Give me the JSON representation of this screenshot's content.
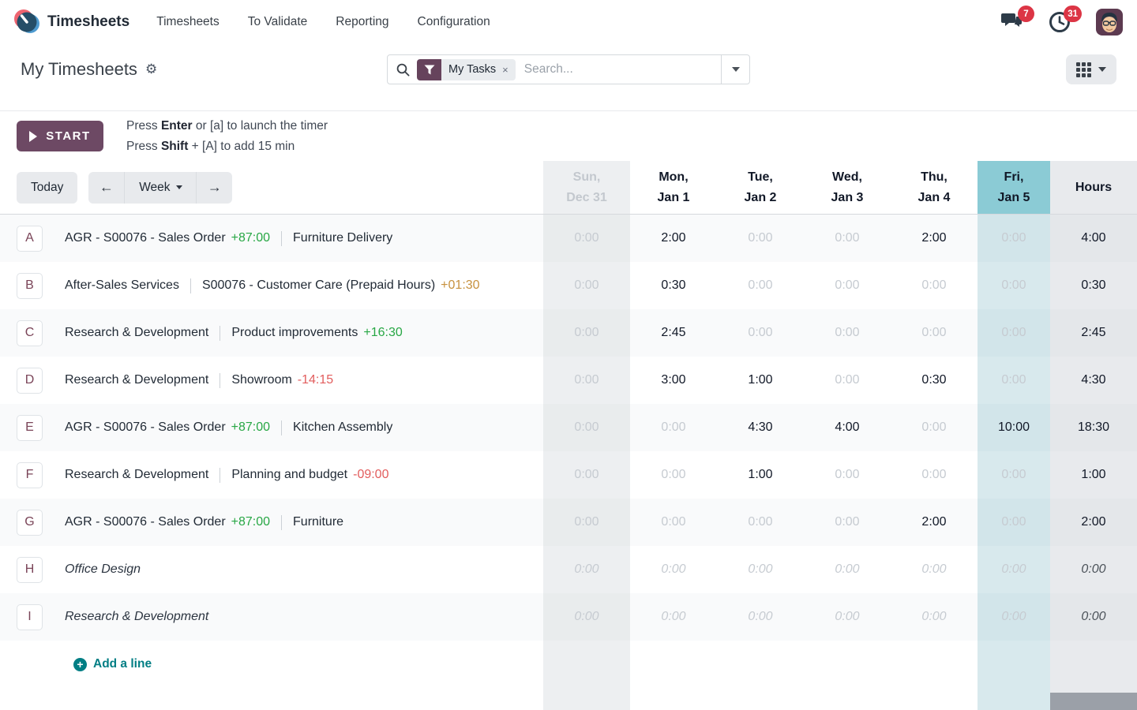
{
  "topbar": {
    "app_name": "Timesheets",
    "menu": [
      "Timesheets",
      "To Validate",
      "Reporting",
      "Configuration"
    ],
    "messages_badge": "7",
    "activities_badge": "31"
  },
  "control_panel": {
    "title": "My Timesheets",
    "search": {
      "facet_label": "My Tasks",
      "remove_label": "×",
      "placeholder": "Search..."
    }
  },
  "timer": {
    "start_label": "START",
    "hint1_pre": "Press",
    "hint1_key": "Enter",
    "hint1_post": " or [a] to launch the timer",
    "hint2_pre": "Press",
    "hint2_key": "Shift",
    "hint2_post": " + [A] to add 15 min"
  },
  "grid": {
    "today_label": "Today",
    "prev_label": "←",
    "next_label": "→",
    "range_label": "Week",
    "hours_label": "Hours",
    "columns": [
      {
        "line1": "Sun,",
        "line2": "Dec 31",
        "type": "weekend"
      },
      {
        "line1": "Mon,",
        "line2": "Jan 1"
      },
      {
        "line1": "Tue,",
        "line2": "Jan 2"
      },
      {
        "line1": "Wed,",
        "line2": "Jan 3"
      },
      {
        "line1": "Thu,",
        "line2": "Jan 4"
      },
      {
        "line1": "Fri,",
        "line2": "Jan 5",
        "type": "today"
      }
    ],
    "rows": [
      {
        "letter": "A",
        "project": "AGR - S00076 - Sales Order",
        "project_delta": "+87:00",
        "project_delta_color": "green",
        "task": "Furniture Delivery",
        "values": [
          "0:00",
          "2:00",
          "0:00",
          "0:00",
          "2:00",
          "0:00"
        ],
        "total": "4:00"
      },
      {
        "letter": "B",
        "project": "After-Sales Services",
        "task": "S00076 - Customer Care (Prepaid Hours)",
        "task_delta": "+01:30",
        "task_delta_color": "amber",
        "values": [
          "0:00",
          "0:30",
          "0:00",
          "0:00",
          "0:00",
          "0:00"
        ],
        "total": "0:30"
      },
      {
        "letter": "C",
        "project": "Research & Development",
        "task": "Product improvements",
        "task_delta": "+16:30",
        "task_delta_color": "green",
        "values": [
          "0:00",
          "2:45",
          "0:00",
          "0:00",
          "0:00",
          "0:00"
        ],
        "total": "2:45"
      },
      {
        "letter": "D",
        "project": "Research & Development",
        "task": "Showroom",
        "task_delta": "-14:15",
        "task_delta_color": "red",
        "values": [
          "0:00",
          "3:00",
          "1:00",
          "0:00",
          "0:30",
          "0:00"
        ],
        "total": "4:30"
      },
      {
        "letter": "E",
        "project": "AGR - S00076 - Sales Order",
        "project_delta": "+87:00",
        "project_delta_color": "green",
        "task": "Kitchen Assembly",
        "values": [
          "0:00",
          "0:00",
          "4:30",
          "4:00",
          "0:00",
          "10:00"
        ],
        "total": "18:30"
      },
      {
        "letter": "F",
        "project": "Research & Development",
        "task": "Planning and budget",
        "task_delta": "-09:00",
        "task_delta_color": "red",
        "values": [
          "0:00",
          "0:00",
          "1:00",
          "0:00",
          "0:00",
          "0:00"
        ],
        "total": "1:00"
      },
      {
        "letter": "G",
        "project": "AGR - S00076 - Sales Order",
        "project_delta": "+87:00",
        "project_delta_color": "green",
        "task": "Furniture",
        "values": [
          "0:00",
          "0:00",
          "0:00",
          "0:00",
          "2:00",
          "0:00"
        ],
        "total": "2:00"
      },
      {
        "letter": "H",
        "project": "Office Design",
        "italic": true,
        "values": [
          "0:00",
          "0:00",
          "0:00",
          "0:00",
          "0:00",
          "0:00"
        ],
        "total": "0:00"
      },
      {
        "letter": "I",
        "project": "Research & Development",
        "italic": true,
        "values": [
          "0:00",
          "0:00",
          "0:00",
          "0:00",
          "0:00",
          "0:00"
        ],
        "total": "0:00"
      }
    ],
    "add_line_label": "Add a line",
    "add_line_plus": "+"
  },
  "colors": {
    "brand_plum": "#6d4964",
    "facet_plum": "#66435c",
    "letter_plum": "#7a4458",
    "today_header_teal": "#8bcbd5",
    "today_col_teal": "#d8e9ed",
    "weekend_col_gray": "#edeff1",
    "hours_col_gray": "#e8eaed",
    "link_teal": "#017e84",
    "delta_green": "#28a745",
    "delta_red": "#e25d5d",
    "delta_amber": "#c7913e",
    "badge_red": "#dc3545",
    "muted_value": "#c6cbd1",
    "dark_text": "#111827"
  }
}
